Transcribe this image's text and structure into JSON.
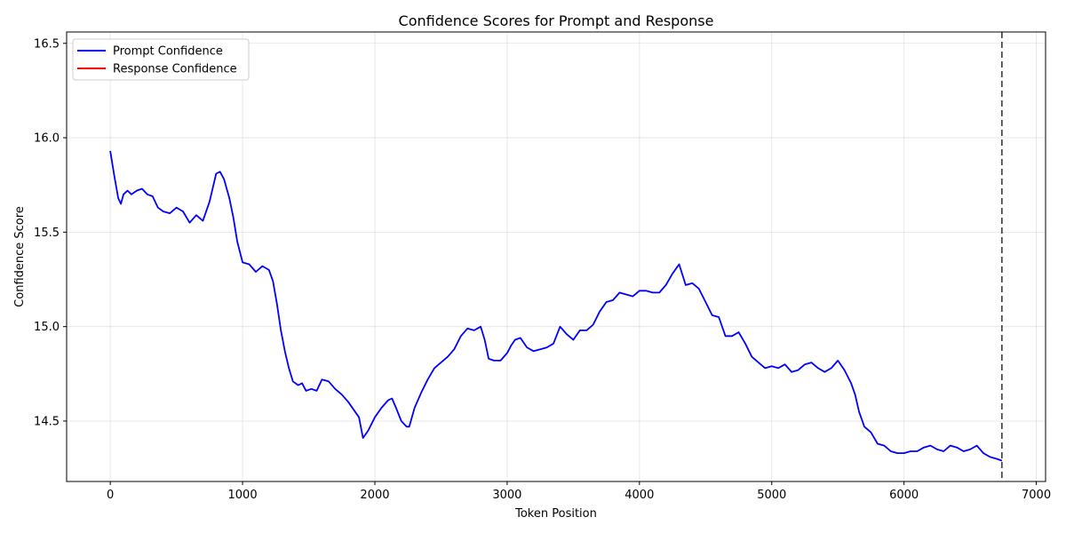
{
  "chart_data": {
    "type": "line",
    "title": "Confidence Scores for Prompt and Response",
    "xlabel": "Token Position",
    "ylabel": "Confidence Score",
    "xlim": [
      -330,
      7070
    ],
    "ylim": [
      14.18,
      16.56
    ],
    "xticks": [
      0,
      1000,
      2000,
      3000,
      4000,
      5000,
      6000,
      7000
    ],
    "yticks": [
      14.5,
      15.0,
      15.5,
      16.0,
      16.5
    ],
    "xtick_labels": [
      "0",
      "1000",
      "2000",
      "3000",
      "4000",
      "5000",
      "6000",
      "7000"
    ],
    "ytick_labels": [
      "14.5",
      "15.0",
      "15.5",
      "16.0",
      "16.5"
    ],
    "grid": true,
    "legend_position": "top-left",
    "divider_x": 6740,
    "series": [
      {
        "name": "Prompt Confidence",
        "color": "#0000ff",
        "x": [
          0,
          30,
          60,
          80,
          100,
          130,
          160,
          200,
          240,
          280,
          320,
          360,
          400,
          450,
          500,
          550,
          600,
          650,
          700,
          750,
          800,
          830,
          860,
          900,
          930,
          960,
          1000,
          1050,
          1100,
          1150,
          1200,
          1230,
          1260,
          1290,
          1320,
          1350,
          1380,
          1420,
          1450,
          1480,
          1520,
          1560,
          1600,
          1650,
          1700,
          1750,
          1800,
          1850,
          1880,
          1910,
          1950,
          2000,
          2050,
          2100,
          2130,
          2160,
          2200,
          2240,
          2260,
          2300,
          2350,
          2400,
          2450,
          2500,
          2550,
          2600,
          2650,
          2700,
          2750,
          2800,
          2830,
          2860,
          2900,
          2950,
          3000,
          3030,
          3060,
          3100,
          3150,
          3200,
          3250,
          3300,
          3350,
          3400,
          3450,
          3500,
          3550,
          3600,
          3650,
          3700,
          3750,
          3800,
          3850,
          3900,
          3950,
          4000,
          4050,
          4100,
          4150,
          4200,
          4250,
          4300,
          4350,
          4400,
          4450,
          4500,
          4550,
          4600,
          4650,
          4700,
          4750,
          4800,
          4850,
          4900,
          4950,
          5000,
          5050,
          5100,
          5150,
          5200,
          5250,
          5300,
          5350,
          5400,
          5450,
          5500,
          5550,
          5600,
          5630,
          5660,
          5700,
          5750,
          5800,
          5850,
          5900,
          5950,
          6000,
          6050,
          6100,
          6150,
          6200,
          6250,
          6300,
          6350,
          6400,
          6450,
          6500,
          6550,
          6600,
          6650,
          6700,
          6740
        ],
        "y": [
          15.93,
          15.8,
          15.68,
          15.65,
          15.7,
          15.72,
          15.7,
          15.72,
          15.73,
          15.7,
          15.69,
          15.63,
          15.61,
          15.6,
          15.63,
          15.61,
          15.55,
          15.59,
          15.56,
          15.66,
          15.81,
          15.82,
          15.78,
          15.68,
          15.58,
          15.45,
          15.34,
          15.33,
          15.29,
          15.32,
          15.3,
          15.24,
          15.12,
          14.98,
          14.87,
          14.78,
          14.71,
          14.69,
          14.7,
          14.66,
          14.67,
          14.66,
          14.72,
          14.71,
          14.67,
          14.64,
          14.6,
          14.55,
          14.52,
          14.41,
          14.45,
          14.52,
          14.57,
          14.61,
          14.62,
          14.57,
          14.5,
          14.47,
          14.47,
          14.57,
          14.65,
          14.72,
          14.78,
          14.81,
          14.84,
          14.88,
          14.95,
          14.99,
          14.98,
          15.0,
          14.93,
          14.83,
          14.82,
          14.82,
          14.86,
          14.9,
          14.93,
          14.94,
          14.89,
          14.87,
          14.88,
          14.89,
          14.91,
          15.0,
          14.96,
          14.93,
          14.98,
          14.98,
          15.01,
          15.08,
          15.13,
          15.14,
          15.18,
          15.17,
          15.16,
          15.19,
          15.19,
          15.18,
          15.18,
          15.22,
          15.28,
          15.33,
          15.22,
          15.23,
          15.2,
          15.13,
          15.06,
          15.05,
          14.95,
          14.95,
          14.97,
          14.91,
          14.84,
          14.81,
          14.78,
          14.79,
          14.78,
          14.8,
          14.76,
          14.77,
          14.8,
          14.81,
          14.78,
          14.76,
          14.78,
          14.82,
          14.77,
          14.7,
          14.64,
          14.55,
          14.47,
          14.44,
          14.38,
          14.37,
          14.34,
          14.33,
          14.33,
          14.34,
          14.34,
          14.36,
          14.37,
          14.35,
          14.34,
          14.37,
          14.36,
          14.34,
          14.35,
          14.37,
          14.33,
          14.31,
          14.3,
          14.29
        ]
      },
      {
        "name": "Response Confidence",
        "color": "#ff0000",
        "x": [],
        "y": []
      }
    ]
  }
}
